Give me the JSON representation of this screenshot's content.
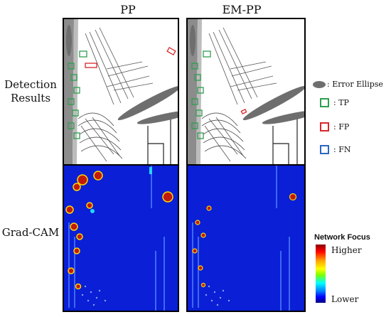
{
  "columns": {
    "pp": "PP",
    "empp": "EM-PP"
  },
  "rows": {
    "detection_line1": "Detection",
    "detection_line2": "Results",
    "gradcam": "Grad-CAM"
  },
  "legend": {
    "ellipse_label": ": Error Ellipse",
    "tp_label": ": TP",
    "fp_label": ": FP",
    "fn_label": ": FN",
    "colors": {
      "tp": "#2e9e4f",
      "fp": "#d9262a",
      "fn": "#2a66c4",
      "ellipse": "#6e6e6e"
    }
  },
  "colorbar": {
    "title": "Network Focus",
    "high": "Higher",
    "low": "Lower"
  },
  "heatmap_colors": {
    "background": "#0a1fd6",
    "hot": "#c21a0a",
    "warm": "#ffd400",
    "cool": "#23d7ff"
  }
}
